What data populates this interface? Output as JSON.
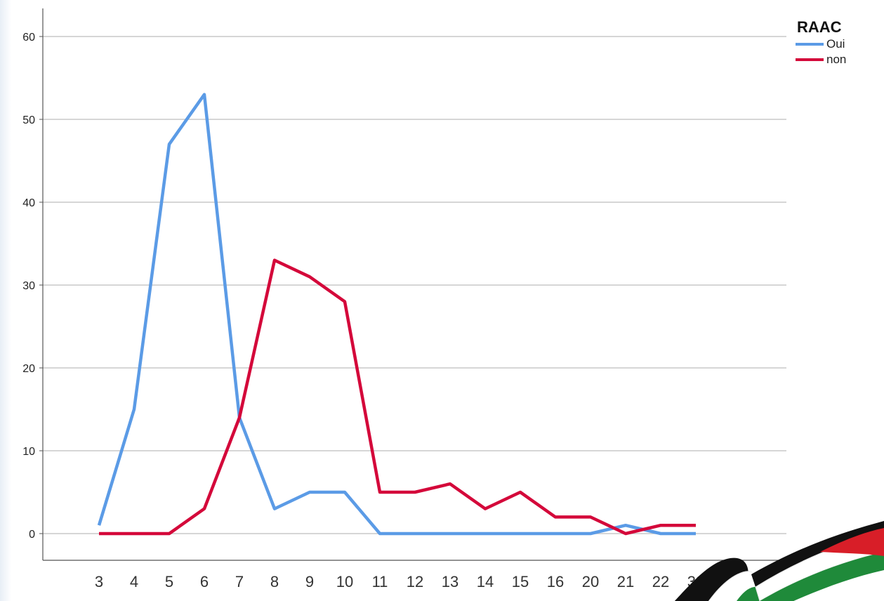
{
  "chart_data": {
    "type": "line",
    "categories": [
      "3",
      "4",
      "5",
      "6",
      "7",
      "8",
      "9",
      "10",
      "11",
      "12",
      "13",
      "14",
      "15",
      "16",
      "20",
      "21",
      "22",
      "32"
    ],
    "ylim": [
      -3,
      63
    ],
    "yticks": [
      0,
      10,
      20,
      30,
      40,
      50,
      60
    ],
    "grid": true,
    "legend": {
      "title": "RAAC",
      "position": "top-right"
    },
    "series": [
      {
        "name": "Oui",
        "color": "#5b9be6",
        "values": [
          1,
          15,
          47,
          53,
          14,
          3,
          5,
          5,
          0,
          0,
          0,
          0,
          0,
          0,
          0,
          1,
          0,
          0
        ]
      },
      {
        "name": "non",
        "color": "#d4083a",
        "values": [
          0,
          0,
          0,
          3,
          14,
          33,
          31,
          28,
          5,
          5,
          6,
          3,
          5,
          2,
          2,
          0,
          1,
          1
        ]
      }
    ]
  },
  "decoration": {
    "icon": "palestinian-flag-ribbon-icon",
    "colors": [
      "#111111",
      "#ffffff",
      "#1f8a3a",
      "#d81e28"
    ]
  }
}
